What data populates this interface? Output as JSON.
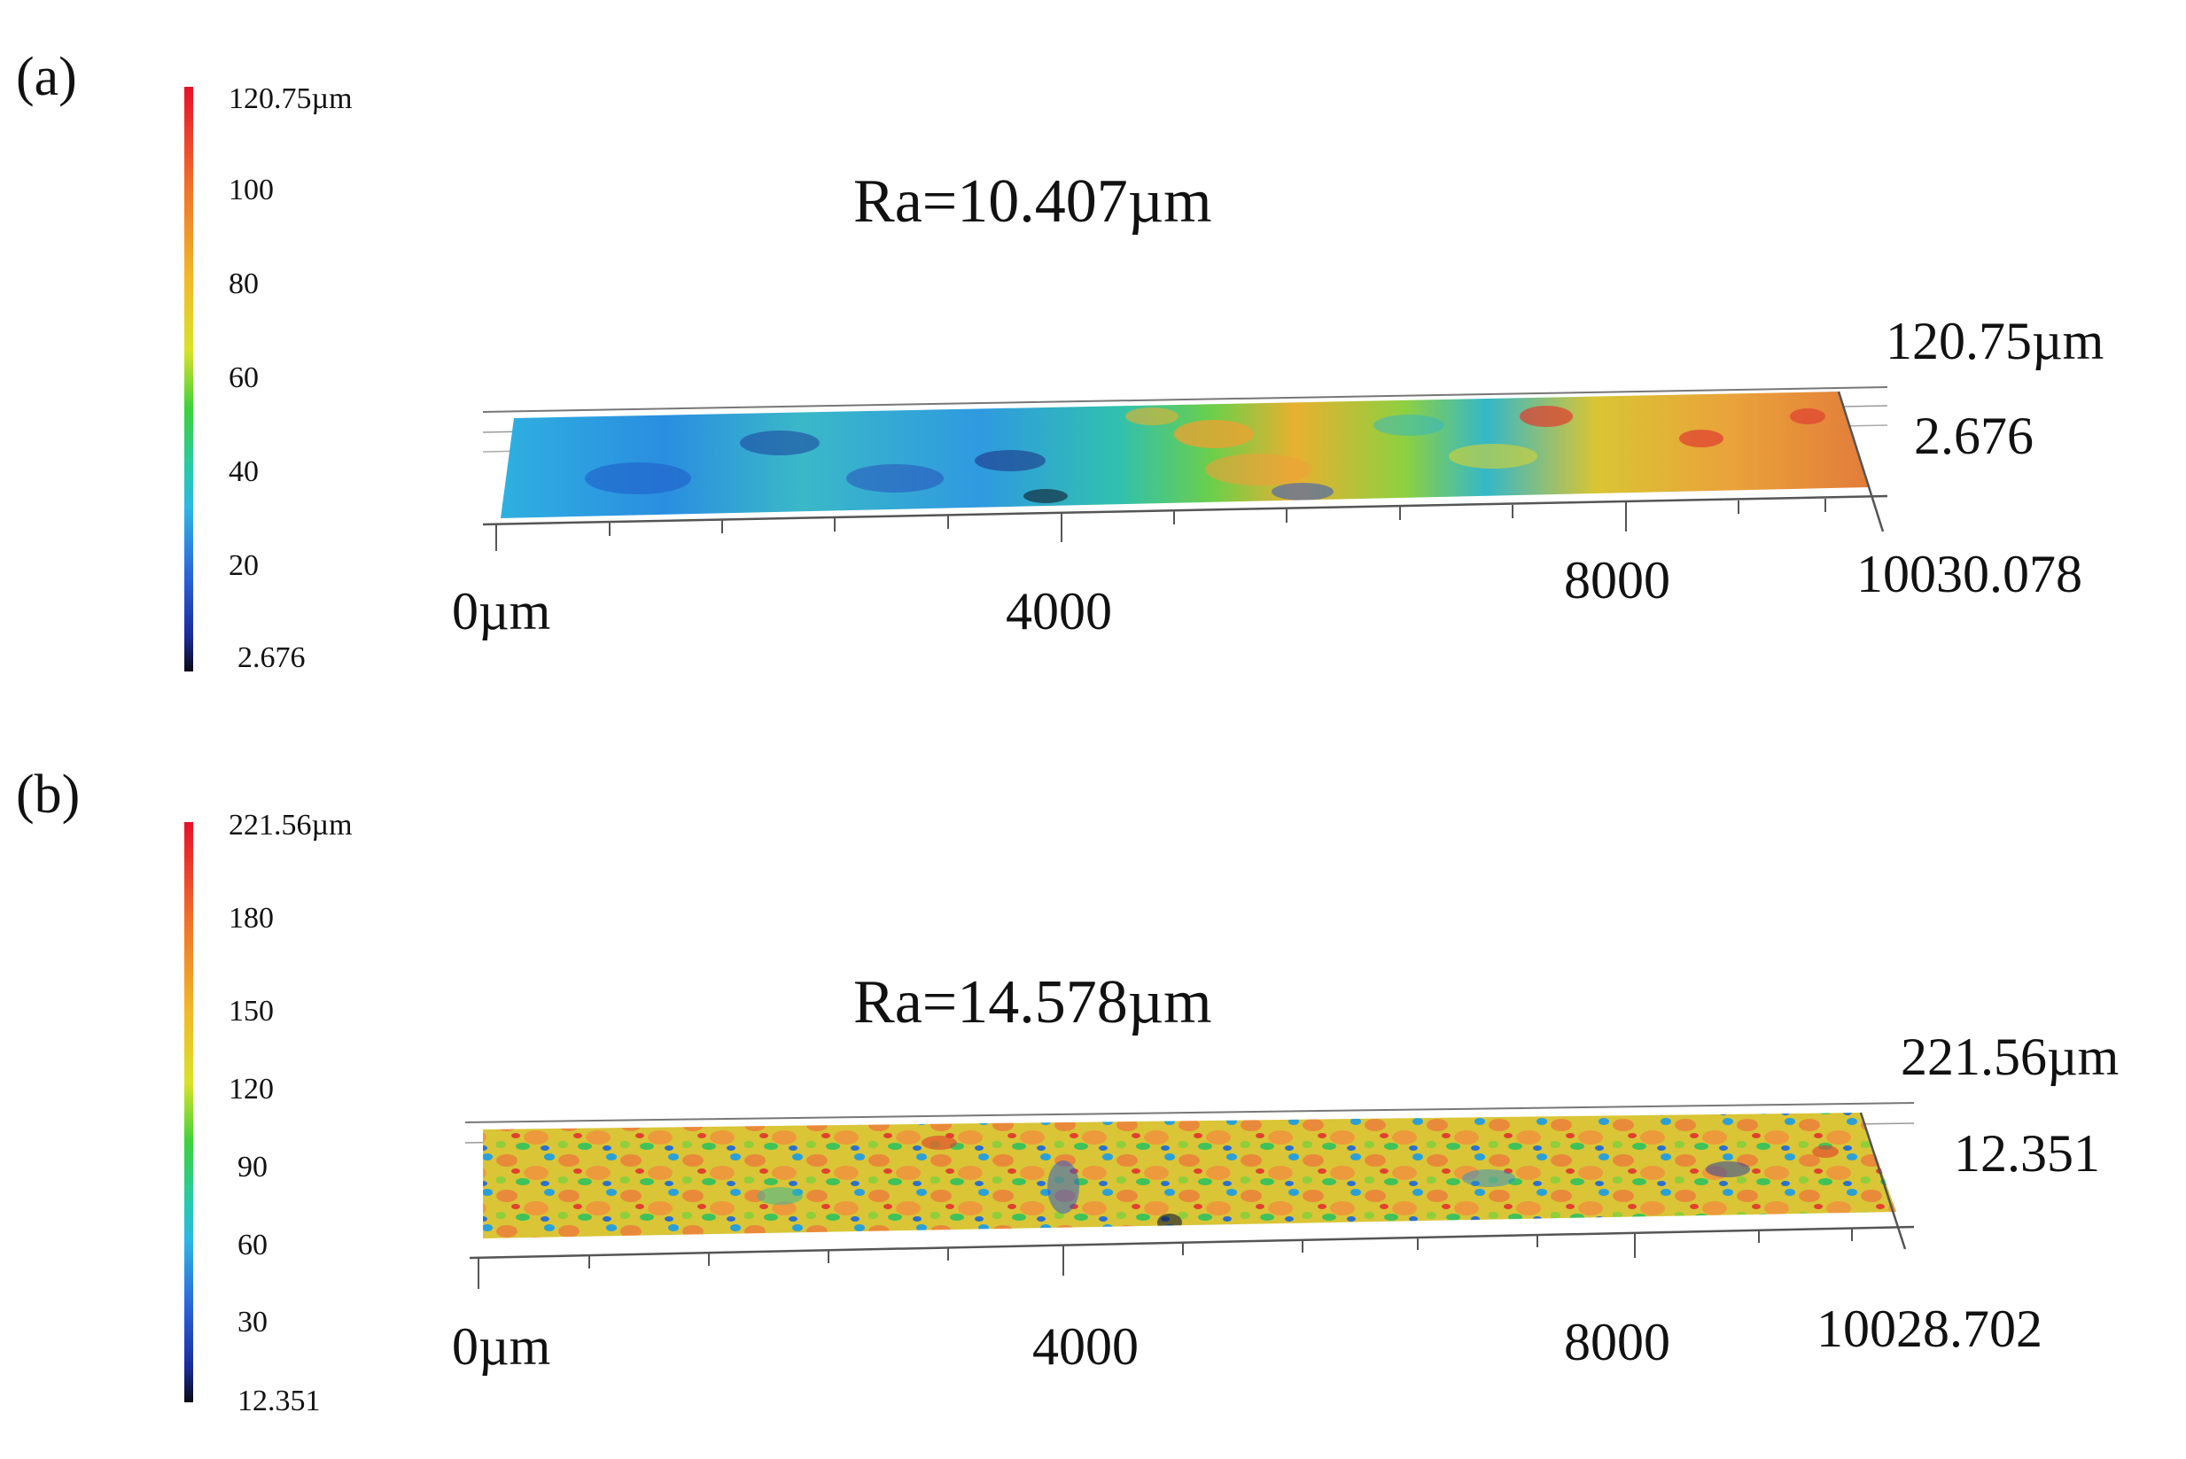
{
  "panels": [
    {
      "label": "(a)",
      "colorbar_ticks": [
        "120.75µm",
        "100",
        "80",
        "60",
        "40",
        "20",
        "2.676"
      ],
      "ra_text": "Ra=10.407µm",
      "z_max_label": "120.75µm",
      "z_min_label": "2.676",
      "x_ticks": [
        "0µm",
        "4000",
        "8000"
      ],
      "x_end_label": "10030.078",
      "surface_character": "smooth, low-left to high-right gradient"
    },
    {
      "label": "(b)",
      "colorbar_ticks": [
        "221.56µm",
        "180",
        "150",
        "120",
        "90",
        "60",
        "30",
        "12.351"
      ],
      "ra_text": "Ra=14.578µm",
      "z_max_label": "221.56µm",
      "z_min_label": "12.351",
      "x_ticks": [
        "0µm",
        "4000",
        "8000"
      ],
      "x_end_label": "10028.702",
      "surface_character": "rough, uniformly speckled"
    }
  ],
  "colormap": [
    "#e8102a",
    "#f0722a",
    "#f2b92a",
    "#d9e22a",
    "#3fd23c",
    "#27c9b0",
    "#2fb6e6",
    "#2a62d8",
    "#1a2a9a",
    "#0a0a14"
  ]
}
